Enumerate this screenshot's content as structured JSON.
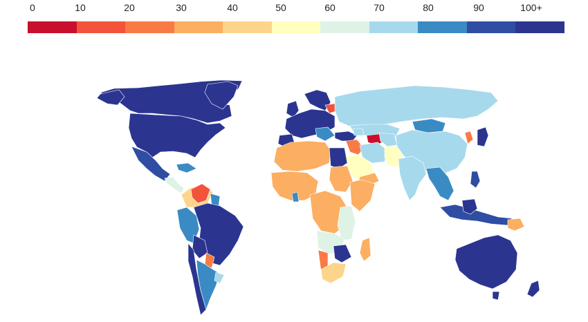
{
  "legend": {
    "labels": [
      "0",
      "10",
      "20",
      "30",
      "40",
      "50",
      "60",
      "70",
      "80",
      "90",
      "100+"
    ],
    "colors": [
      "#c8102e",
      "#f2533a",
      "#fa7a45",
      "#fcae62",
      "#fdd58a",
      "#ffffbf",
      "#dff2e6",
      "#a7d9ec",
      "#3a8bc4",
      "#2e4da3",
      "#2b3590"
    ]
  },
  "map": {
    "land_default": "#2b3590",
    "water": "#ffffff"
  }
}
